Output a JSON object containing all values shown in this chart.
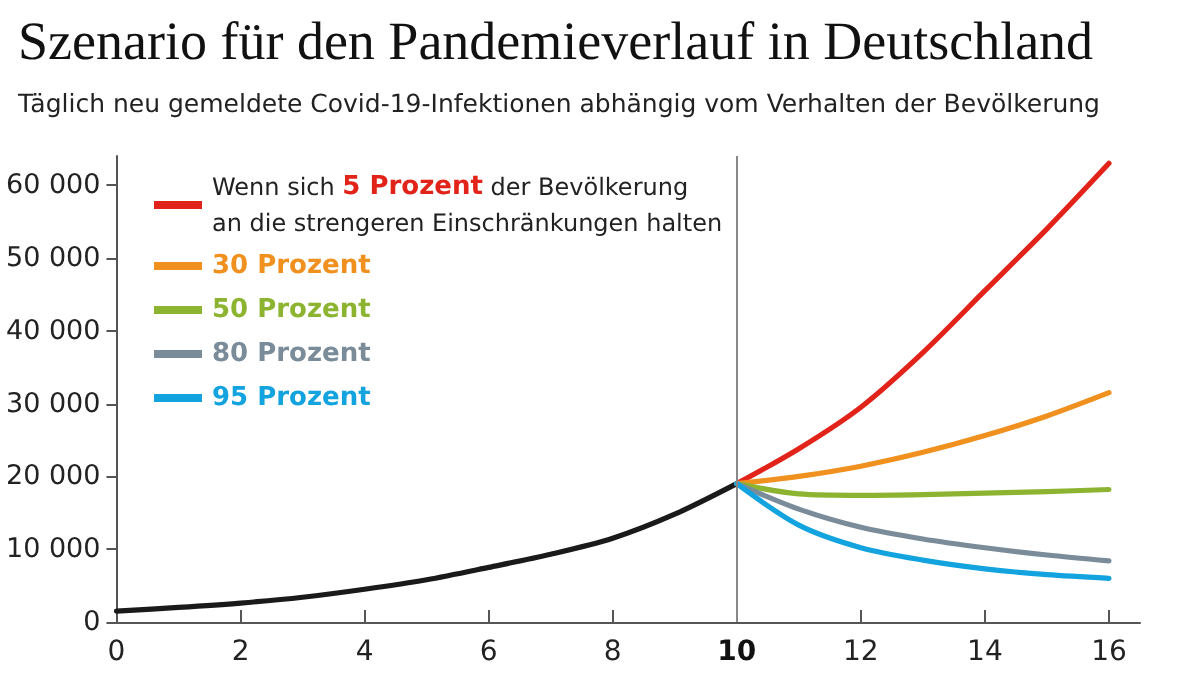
{
  "chart_data": {
    "type": "line",
    "title": "Szenario für den Pandemieverlauf in Deutschland",
    "subtitle": "Täglich neu gemeldete Covid-19-Infektionen abhängig vom Verhalten der Bevölkerung",
    "annotations": [
      "Wenn sich",
      "der Bevölkerung",
      "an die strengeren Einschränkungen halten"
    ],
    "series": [
      {
        "color": "#1a1a1a",
        "x": [
          0,
          1,
          2,
          3,
          4,
          5,
          6,
          7,
          8,
          9,
          10
        ],
        "values": [
          1500,
          2000,
          2600,
          3400,
          4500,
          5800,
          7500,
          9300,
          11500,
          14800,
          19000
        ]
      },
      {
        "name": "5 Prozent",
        "color": "#e2231a",
        "x": [
          10,
          11,
          12,
          13,
          14,
          15,
          16
        ],
        "values": [
          19000,
          23800,
          29500,
          37000,
          45500,
          54000,
          63000
        ]
      },
      {
        "name": "30 Prozent",
        "color": "#f0901e",
        "x": [
          10,
          11,
          12,
          13,
          14,
          15,
          16
        ],
        "values": [
          19000,
          20000,
          21400,
          23300,
          25600,
          28300,
          31500
        ]
      },
      {
        "name": "50 Prozent",
        "color": "#8cb431",
        "x": [
          10,
          11,
          12,
          13,
          14,
          15,
          16
        ],
        "values": [
          19000,
          17600,
          17400,
          17500,
          17700,
          17900,
          18200
        ]
      },
      {
        "name": "80 Prozent",
        "color": "#7a8c99",
        "x": [
          10,
          11,
          12,
          13,
          14,
          15,
          16
        ],
        "values": [
          19000,
          15500,
          13000,
          11400,
          10200,
          9200,
          8400
        ]
      },
      {
        "name": "95 Prozent",
        "color": "#13a3de",
        "x": [
          10,
          11,
          12,
          13,
          14,
          15,
          16
        ],
        "values": [
          19000,
          13300,
          10200,
          8500,
          7300,
          6500,
          6000
        ]
      }
    ],
    "xlim": [
      0,
      16.5
    ],
    "xticks": [
      0,
      2,
      4,
      6,
      8,
      10,
      12,
      14,
      16
    ],
    "ylim": [
      0,
      64000
    ],
    "yticks": [
      0,
      {
        "value": 10000,
        "label": "10 000"
      },
      {
        "value": 20000,
        "label": "20 000"
      },
      {
        "value": 30000,
        "label": "30 000"
      },
      {
        "value": 40000,
        "label": "40 000"
      },
      {
        "value": 50000,
        "label": "50 000"
      },
      {
        "value": 60000,
        "label": "60 000"
      }
    ],
    "ref_lines": [
      {
        "axis": "x",
        "value": 10,
        "color": "#888888"
      }
    ],
    "grid": false,
    "legend": "top left",
    "marker": "none",
    "line_style": "solid"
  }
}
